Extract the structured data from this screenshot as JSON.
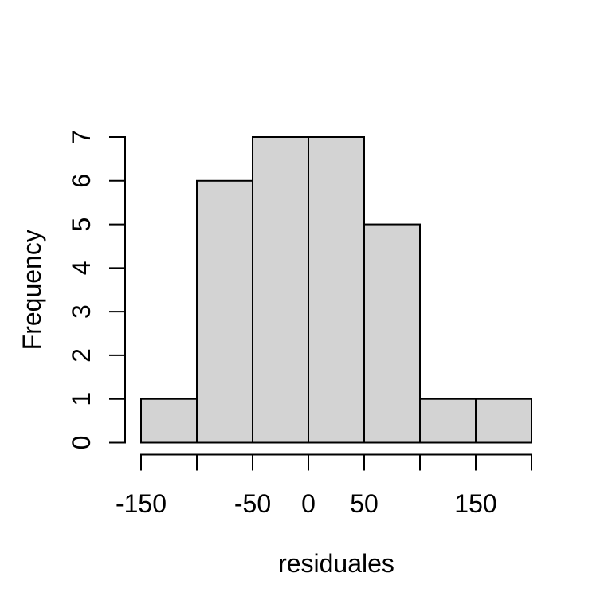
{
  "figure": {
    "background": "#FFFFFF",
    "description": "R base-graphics histogram plot"
  },
  "chart_data": {
    "type": "bar",
    "subtype": "histogram",
    "title": "",
    "xlabel": "residuales",
    "ylabel": "Frequency",
    "bin_breaks": [
      -150,
      -100,
      -50,
      0,
      50,
      100,
      150,
      200
    ],
    "counts": [
      1,
      6,
      7,
      7,
      5,
      1,
      1
    ],
    "xlim": [
      -150,
      200
    ],
    "ylim": [
      0,
      7
    ],
    "x_ticks": [
      -150,
      -100,
      -50,
      0,
      50,
      100,
      150,
      200
    ],
    "x_tick_labels": [
      "-150",
      "",
      "-50",
      "0",
      "50",
      "",
      "150",
      ""
    ],
    "y_ticks": [
      0,
      1,
      2,
      3,
      4,
      5,
      6,
      7
    ],
    "y_tick_labels": [
      "0",
      "1",
      "2",
      "3",
      "4",
      "5",
      "6",
      "7"
    ],
    "bar_fill": "#D3D3D3",
    "bar_stroke": "#000000",
    "axis_color": "#000000",
    "text_color": "#000000",
    "grid": false,
    "legend": null
  }
}
